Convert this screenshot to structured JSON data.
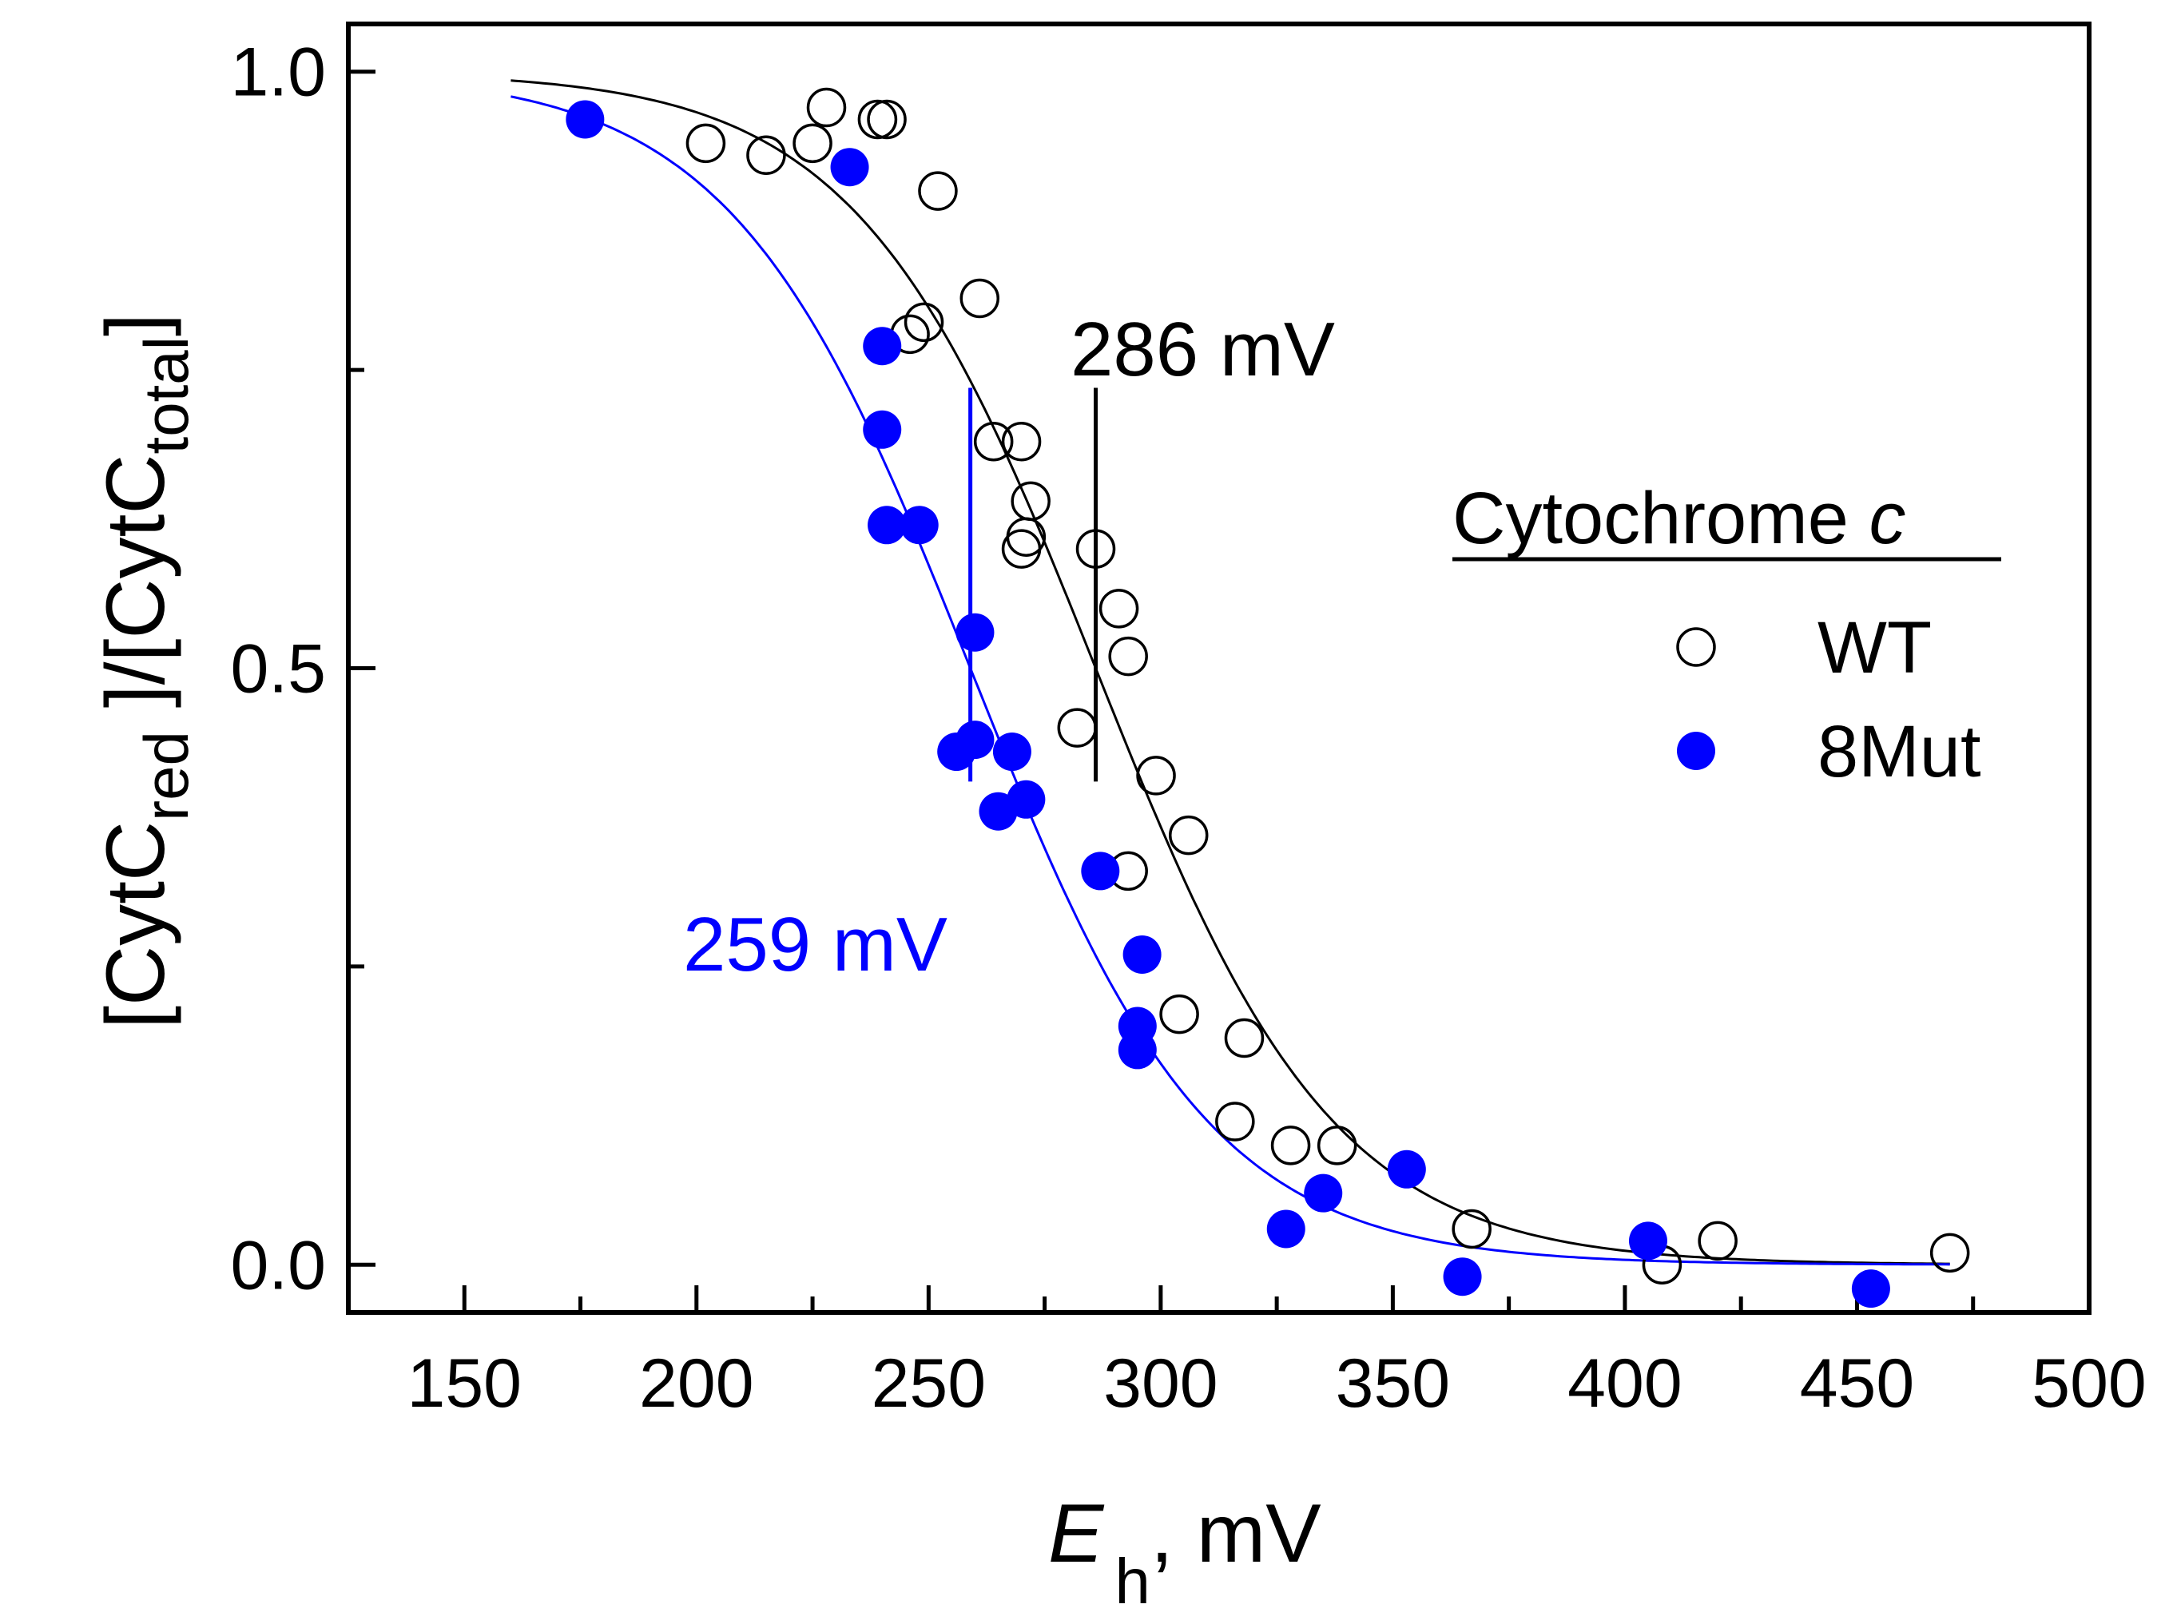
{
  "chart_data": {
    "type": "scatter",
    "xlabel_main": "E",
    "xlabel_sub": "h",
    "xlabel_unit": ", mV",
    "ylabel": {
      "open_bracket": "[",
      "part1": "CytC",
      "sub1": "red",
      "middle": " ]/[",
      "part2": "CytC",
      "sub2": "total",
      "close_bracket": "]"
    },
    "xlim": [
      125,
      500
    ],
    "ylim": [
      -0.04,
      1.04
    ],
    "x_ticks": [
      150,
      200,
      250,
      300,
      350,
      400,
      450,
      500
    ],
    "x_tick_labels": [
      "150",
      "200",
      "250",
      "300",
      "350",
      "400",
      "450",
      "500"
    ],
    "y_ticks": [
      0,
      0.25,
      0.5,
      0.75,
      1.0
    ],
    "y_tick_labels": [
      "0.0",
      "",
      "0.5",
      "",
      "1.0"
    ],
    "grid": false,
    "legend": {
      "title_text": "Cytochrome ",
      "title_italic": "c",
      "position": "right"
    },
    "series": [
      {
        "name": "WT",
        "marker": "open-circle",
        "color": "#000000",
        "midpoint_mV": 286,
        "midpoint_label": "286 mV",
        "points": [
          [
            202,
            0.94
          ],
          [
            215,
            0.93
          ],
          [
            225,
            0.94
          ],
          [
            228,
            0.97
          ],
          [
            239,
            0.96
          ],
          [
            241,
            0.96
          ],
          [
            252,
            0.9
          ],
          [
            246,
            0.78
          ],
          [
            249,
            0.79
          ],
          [
            261,
            0.81
          ],
          [
            264,
            0.69
          ],
          [
            270,
            0.69
          ],
          [
            270,
            0.6
          ],
          [
            271,
            0.61
          ],
          [
            272,
            0.64
          ],
          [
            286,
            0.6
          ],
          [
            291,
            0.55
          ],
          [
            293,
            0.51
          ],
          [
            282,
            0.45
          ],
          [
            299,
            0.41
          ],
          [
            306,
            0.36
          ],
          [
            293,
            0.33
          ],
          [
            304,
            0.21
          ],
          [
            318,
            0.19
          ],
          [
            316,
            0.12
          ],
          [
            328,
            0.1
          ],
          [
            338,
            0.1
          ],
          [
            367,
            0.03
          ],
          [
            408,
            0.0
          ],
          [
            420,
            0.02
          ],
          [
            470,
            0.01
          ]
        ]
      },
      {
        "name": "8Mut",
        "marker": "filled-circle",
        "color": "#0000ff",
        "midpoint_mV": 259,
        "midpoint_label": "259 mV",
        "points": [
          [
            176,
            0.96
          ],
          [
            233,
            0.92
          ],
          [
            240,
            0.77
          ],
          [
            240,
            0.7
          ],
          [
            241,
            0.62
          ],
          [
            248,
            0.62
          ],
          [
            260,
            0.53
          ],
          [
            256,
            0.43
          ],
          [
            260,
            0.44
          ],
          [
            268,
            0.43
          ],
          [
            265,
            0.38
          ],
          [
            271,
            0.39
          ],
          [
            287,
            0.33
          ],
          [
            296,
            0.26
          ],
          [
            295,
            0.2
          ],
          [
            295,
            0.18
          ],
          [
            327,
            0.03
          ],
          [
            335,
            0.06
          ],
          [
            353,
            0.08
          ],
          [
            365,
            -0.01
          ],
          [
            405,
            0.02
          ],
          [
            453,
            -0.02
          ]
        ]
      }
    ]
  }
}
